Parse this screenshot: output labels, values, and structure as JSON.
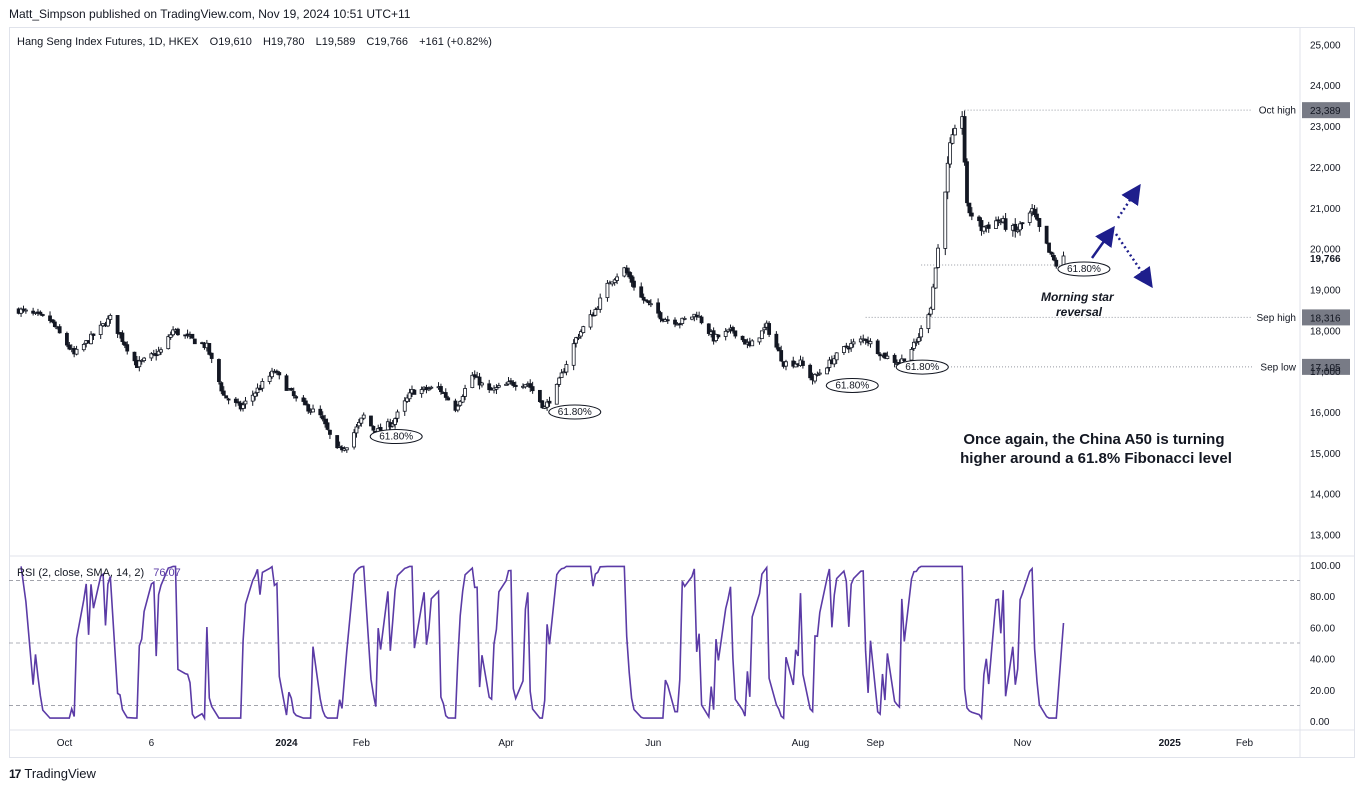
{
  "header": {
    "publisher_line": "Matt_Simpson published on TradingView.com, Nov 19, 2024 10:51 UTC+11"
  },
  "footer": {
    "logo_mark": "17",
    "brand": "TradingView"
  },
  "colors": {
    "candle": "#131722",
    "rsi_line": "#5b3ba6",
    "dotted_level": "#9598a1",
    "price_label_bg": "#787b86",
    "arrow": "#1e1e8c"
  },
  "chart_data": [
    {
      "type": "candlestick",
      "instrument": "Hang Seng Index Futures, 1D, HKEX",
      "ohlc_legend": {
        "open": "O19,610",
        "high": "H19,780",
        "low": "L19,589",
        "close": "C19,766",
        "change": "+161 (+0.82%)"
      },
      "ylim": [
        12500,
        25400
      ],
      "y_ticks": [
        25000,
        24000,
        23000,
        22000,
        21000,
        20000,
        19000,
        18000,
        17000,
        16000,
        15000,
        14000,
        13000
      ],
      "y_tick_labels": [
        "25,000",
        "24,000",
        "23,000",
        "22,000",
        "21,000",
        "20,000",
        "19,000",
        "18,000",
        "17,000",
        "16,000",
        "15,000",
        "14,000",
        "13,000"
      ],
      "x_tick_labels": [
        {
          "label": "Oct",
          "date": "2023-10-01"
        },
        {
          "label": "6",
          "date": "2023-11-06"
        },
        {
          "label": "2024",
          "date": "2024-01-01"
        },
        {
          "label": "Feb",
          "date": "2024-02-01"
        },
        {
          "label": "Apr",
          "date": "2024-04-01"
        },
        {
          "label": "Jun",
          "date": "2024-06-01"
        },
        {
          "label": "Aug",
          "date": "2024-08-01"
        },
        {
          "label": "Sep",
          "date": "2024-09-01"
        },
        {
          "label": "Nov",
          "date": "2024-11-01"
        },
        {
          "label": "2025",
          "date": "2025-01-01"
        },
        {
          "label": "Feb",
          "date": "2025-02-01"
        }
      ],
      "close_path": [
        {
          "date": "2023-09-12",
          "close": 18500
        },
        {
          "date": "2023-09-25",
          "close": 18250
        },
        {
          "date": "2023-10-05",
          "close": 17400
        },
        {
          "date": "2023-10-20",
          "close": 18300
        },
        {
          "date": "2023-10-31",
          "close": 17150
        },
        {
          "date": "2023-11-10",
          "close": 17500
        },
        {
          "date": "2023-11-15",
          "close": 18000
        },
        {
          "date": "2023-11-29",
          "close": 17600
        },
        {
          "date": "2023-12-06",
          "close": 16400
        },
        {
          "date": "2023-12-13",
          "close": 16100
        },
        {
          "date": "2023-12-27",
          "close": 17000
        },
        {
          "date": "2024-01-05",
          "close": 16300
        },
        {
          "date": "2024-01-15",
          "close": 15900
        },
        {
          "date": "2024-01-22",
          "close": 15050
        },
        {
          "date": "2024-01-26",
          "close": 15200
        },
        {
          "date": "2024-02-02",
          "close": 15900
        },
        {
          "date": "2024-02-07",
          "close": 15500
        },
        {
          "date": "2024-02-14",
          "close": 15750
        },
        {
          "date": "2024-02-22",
          "close": 16500
        },
        {
          "date": "2024-03-04",
          "close": 16600
        },
        {
          "date": "2024-03-11",
          "close": 16100
        },
        {
          "date": "2024-03-18",
          "close": 16900
        },
        {
          "date": "2024-03-25",
          "close": 16500
        },
        {
          "date": "2024-04-03",
          "close": 16700
        },
        {
          "date": "2024-04-10",
          "close": 16700
        },
        {
          "date": "2024-04-17",
          "close": 16100
        },
        {
          "date": "2024-04-22",
          "close": 16600
        },
        {
          "date": "2024-04-30",
          "close": 17800
        },
        {
          "date": "2024-05-08",
          "close": 18500
        },
        {
          "date": "2024-05-14",
          "close": 19200
        },
        {
          "date": "2024-05-20",
          "close": 19500
        },
        {
          "date": "2024-05-27",
          "close": 18800
        },
        {
          "date": "2024-06-05",
          "close": 18300
        },
        {
          "date": "2024-06-12",
          "close": 18200
        },
        {
          "date": "2024-06-19",
          "close": 18400
        },
        {
          "date": "2024-06-26",
          "close": 17800
        },
        {
          "date": "2024-07-04",
          "close": 18000
        },
        {
          "date": "2024-07-11",
          "close": 17600
        },
        {
          "date": "2024-07-18",
          "close": 18100
        },
        {
          "date": "2024-07-25",
          "close": 17200
        },
        {
          "date": "2024-08-01",
          "close": 17200
        },
        {
          "date": "2024-08-06",
          "close": 16800
        },
        {
          "date": "2024-08-13",
          "close": 17200
        },
        {
          "date": "2024-08-20",
          "close": 17600
        },
        {
          "date": "2024-08-28",
          "close": 17800
        },
        {
          "date": "2024-09-04",
          "close": 17400
        },
        {
          "date": "2024-09-11",
          "close": 17200
        },
        {
          "date": "2024-09-18",
          "close": 17700
        },
        {
          "date": "2024-09-24",
          "close": 18600
        },
        {
          "date": "2024-09-27",
          "close": 20000
        },
        {
          "date": "2024-10-02",
          "close": 22500
        },
        {
          "date": "2024-10-07",
          "close": 23300
        },
        {
          "date": "2024-10-09",
          "close": 21000
        },
        {
          "date": "2024-10-15",
          "close": 20500
        },
        {
          "date": "2024-10-22",
          "close": 20700
        },
        {
          "date": "2024-10-29",
          "close": 20400
        },
        {
          "date": "2024-11-05",
          "close": 20900
        },
        {
          "date": "2024-11-12",
          "close": 19900
        },
        {
          "date": "2024-11-15",
          "close": 19600
        },
        {
          "date": "2024-11-18",
          "close": 19766
        }
      ],
      "price_levels": [
        {
          "name": "Oct high",
          "label": "23,389",
          "value": 23389
        },
        {
          "name": "Sep high",
          "label": "18,316",
          "value": 18316
        },
        {
          "name": "Sep low",
          "label": "17,105",
          "value": 17105
        }
      ],
      "last_price": {
        "label": "19,766",
        "value": 19766
      },
      "fib_markers": [
        {
          "label": "61.80%",
          "date": "2024-02-08",
          "value": 15400
        },
        {
          "label": "61.80%",
          "date": "2024-04-22",
          "value": 16000
        },
        {
          "label": "61.80%",
          "date": "2024-08-15",
          "value": 16650
        },
        {
          "label": "61.80%",
          "date": "2024-09-13",
          "value": 17100
        },
        {
          "label": "61.80%",
          "date": "2024-11-19",
          "value": 19500
        }
      ],
      "annotations": [
        {
          "text": "Morning star",
          "text2": "reversal"
        },
        {
          "text": "Once again, the China A50 is turning",
          "text2": "higher around a 61.8% Fibonacci level"
        }
      ]
    },
    {
      "type": "line",
      "indicator": "RSI (2, close, SMA, 14, 2)",
      "last_value": "76.07",
      "ylim": [
        -5,
        105
      ],
      "y_ticks": [
        100,
        80,
        60,
        40,
        20,
        0
      ],
      "y_tick_labels": [
        "100.00",
        "80.00",
        "60.00",
        "40.00",
        "20.00",
        "0.00"
      ],
      "bands": [
        90,
        50,
        10
      ]
    }
  ]
}
